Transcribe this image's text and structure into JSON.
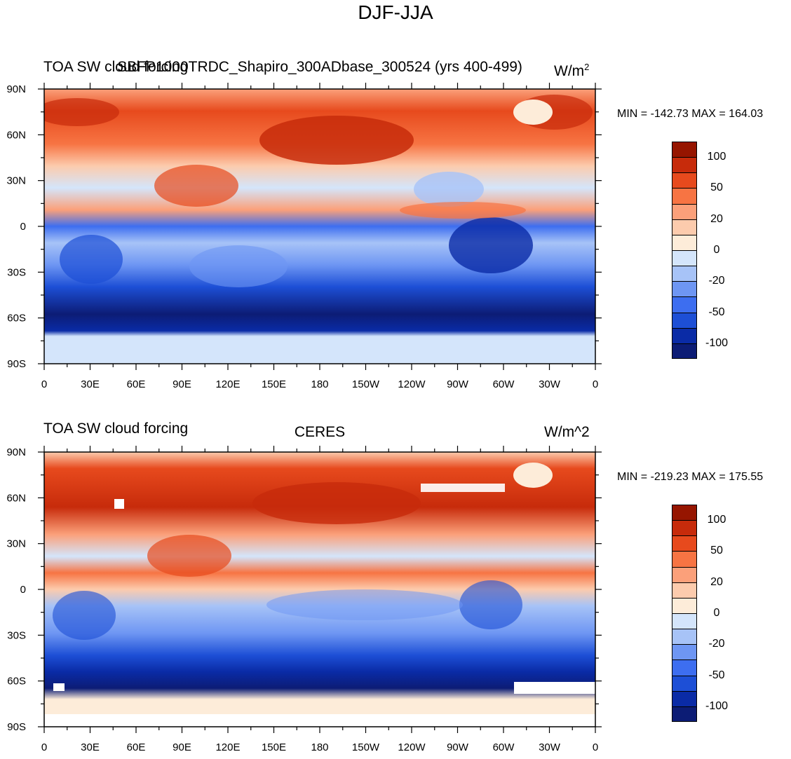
{
  "main_title": "DJF-JJA",
  "colorbar": {
    "colors": [
      "#0c1c75",
      "#0a2ba6",
      "#1d4fd6",
      "#3d6ef0",
      "#6e96f3",
      "#a7c3f7",
      "#d4e5fb",
      "#fdecd9",
      "#fccbad",
      "#fba07a",
      "#f77443",
      "#e74a1d",
      "#c72b0b",
      "#961500"
    ],
    "tick_labels": [
      "-100",
      "",
      "-50",
      "",
      "-20",
      "",
      "0",
      "",
      "20",
      "",
      "50",
      "",
      "100"
    ]
  },
  "lat_labels": [
    "90N",
    "60N",
    "30N",
    "0",
    "30S",
    "60S",
    "90S"
  ],
  "lon_labels": [
    "0",
    "30E",
    "60E",
    "90E",
    "120E",
    "150E",
    "180",
    "150W",
    "120W",
    "90W",
    "60W",
    "30W",
    "0"
  ],
  "panels": [
    {
      "left_title": "TOA SW cloud forcing",
      "center_title": "SBFP1000TRDC_Shapiro_300ADbase_300524 (yrs 400-499)",
      "units_base": "W/m",
      "units_sup": "2",
      "units_text": "",
      "min_max": "MIN = -142.73 MAX = 164.03"
    },
    {
      "left_title": "TOA SW cloud forcing",
      "center_title": "CERES",
      "units_base": "",
      "units_sup": "",
      "units_text": "W/m^2",
      "min_max": "MIN = -219.23 MAX = 175.55"
    }
  ]
}
